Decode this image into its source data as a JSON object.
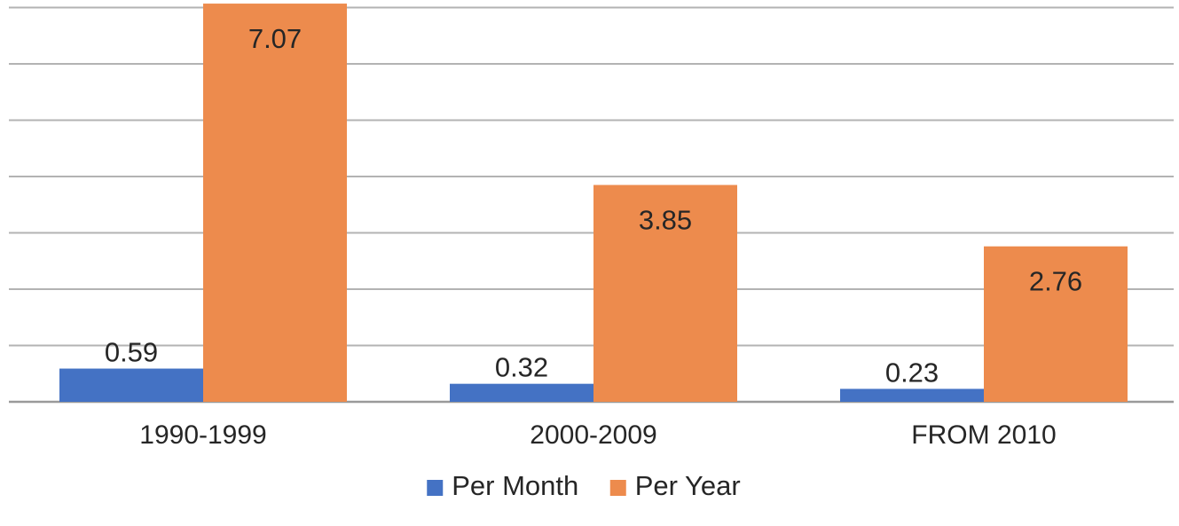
{
  "chart_data": {
    "type": "bar",
    "categories": [
      "1990-1999",
      "2000-2009",
      "FROM 2010"
    ],
    "series": [
      {
        "name": "Per Month",
        "values": [
          0.59,
          0.32,
          0.23
        ],
        "color": "#4472C4"
      },
      {
        "name": "Per Year",
        "values": [
          7.07,
          3.85,
          2.76
        ],
        "color": "#ED8B4D"
      }
    ],
    "data_labels": [
      [
        "0.59",
        "0.32",
        "0.23"
      ],
      [
        "7.07",
        "3.85",
        "2.76"
      ]
    ],
    "ylim": [
      0,
      7
    ],
    "gridline_step": 1,
    "grid": true,
    "y_axis_labels_shown": false,
    "legend_position": "bottom-center",
    "gridline_color": "#B3B3B3"
  }
}
